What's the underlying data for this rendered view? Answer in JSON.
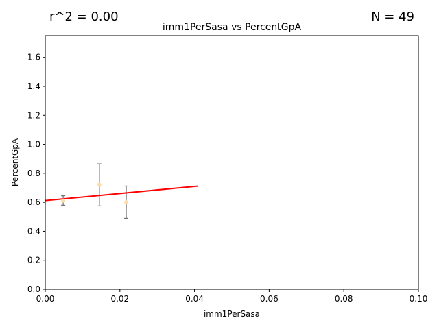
{
  "chart_data": {
    "type": "scatter",
    "title": "imm1PerSasa vs PercentGpA",
    "xlabel": "imm1PerSasa",
    "ylabel": "PercentGpA",
    "xlim": [
      0,
      0.1
    ],
    "ylim": [
      0,
      1.75
    ],
    "xticks": [
      0.0,
      0.02,
      0.04,
      0.06,
      0.08,
      0.1
    ],
    "xtick_labels": [
      "0.00",
      "0.02",
      "0.04",
      "0.06",
      "0.08",
      "0.10"
    ],
    "yticks": [
      0.0,
      0.2,
      0.4,
      0.6,
      0.8,
      1.0,
      1.2,
      1.4,
      1.6
    ],
    "ytick_labels": [
      "0.0",
      "0.2",
      "0.4",
      "0.6",
      "0.8",
      "1.0",
      "1.2",
      "1.4",
      "1.6"
    ],
    "grid": false,
    "annotations": {
      "r2": "r^2 = 0.00",
      "n": "N = 49"
    },
    "points": [
      {
        "x": 0.0048,
        "y": 0.612,
        "err_low": 0.58,
        "err_high": 0.645
      },
      {
        "x": 0.0145,
        "y": 0.722,
        "err_low": 0.575,
        "err_high": 0.865
      },
      {
        "x": 0.0217,
        "y": 0.6,
        "err_low": 0.49,
        "err_high": 0.712
      }
    ],
    "fit_line": {
      "x": [
        0.0,
        0.041
      ],
      "y": [
        0.612,
        0.712
      ],
      "color": "#ff0000"
    },
    "colors": {
      "point": "#ffdcaa",
      "errorbar": "#707070",
      "fit": "#ff0000"
    }
  }
}
